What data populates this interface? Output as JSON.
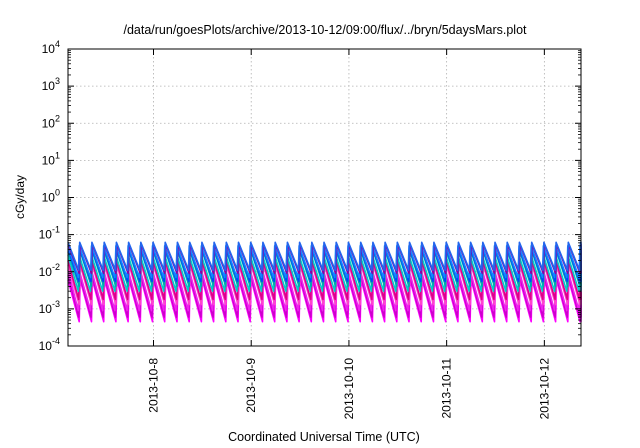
{
  "chart_data": {
    "type": "line",
    "title": "/data/run/goesPlots/archive/2013-10-12/09:00/flux/../bryn/5daysMars.plot",
    "xlabel": "Coordinated Universal Time (UTC)",
    "ylabel": "cGy/day",
    "x_range": [
      "2013-10-07T03:00",
      "2013-10-12T09:00"
    ],
    "x_ticks": [
      "2013-10-8",
      "2013-10-9",
      "2013-10-10",
      "2013-10-11",
      "2013-10-12"
    ],
    "x_tick_dates": [
      "2013-10-08T00:00",
      "2013-10-09T00:00",
      "2013-10-10T00:00",
      "2013-10-11T00:00",
      "2013-10-12T00:00"
    ],
    "y_scale": "log",
    "ylim": [
      0.0001,
      10000
    ],
    "y_ticks": [
      {
        "base": "10",
        "exp": "-4",
        "value": 0.0001
      },
      {
        "base": "10",
        "exp": "-3",
        "value": 0.001
      },
      {
        "base": "10",
        "exp": "-2",
        "value": 0.01
      },
      {
        "base": "10",
        "exp": "-1",
        "value": 0.1
      },
      {
        "base": "10",
        "exp": "0",
        "value": 1
      },
      {
        "base": "10",
        "exp": "1",
        "value": 10
      },
      {
        "base": "10",
        "exp": "2",
        "value": 100
      },
      {
        "base": "10",
        "exp": "3",
        "value": 1000
      },
      {
        "base": "10",
        "exp": "4",
        "value": 10000
      }
    ],
    "grid": true,
    "legend": "none",
    "sawtooth_period_hours": 3,
    "series": [
      {
        "color": "#ff00ff",
        "peak": 0.006,
        "trough": 0.00045
      },
      {
        "color": "#cc00cc",
        "peak": 0.008,
        "trough": 0.0006
      },
      {
        "color": "#ee22ee",
        "peak": 0.011,
        "trough": 0.0009
      },
      {
        "color": "#ff44cc",
        "peak": 0.015,
        "trough": 0.0013
      },
      {
        "color": "#dd0088",
        "peak": 0.02,
        "trough": 0.0018
      },
      {
        "color": "#00cccc",
        "peak": 0.028,
        "trough": 0.003
      },
      {
        "color": "#00aaaa",
        "peak": 0.035,
        "trough": 0.004
      },
      {
        "color": "#0044ff",
        "peak": 0.042,
        "trough": 0.0055
      },
      {
        "color": "#1188ff",
        "peak": 0.05,
        "trough": 0.007
      },
      {
        "color": "#8800aa",
        "peak": 0.055,
        "trough": 0.009
      },
      {
        "color": "#2266ee",
        "peak": 0.062,
        "trough": 0.011
      }
    ]
  }
}
